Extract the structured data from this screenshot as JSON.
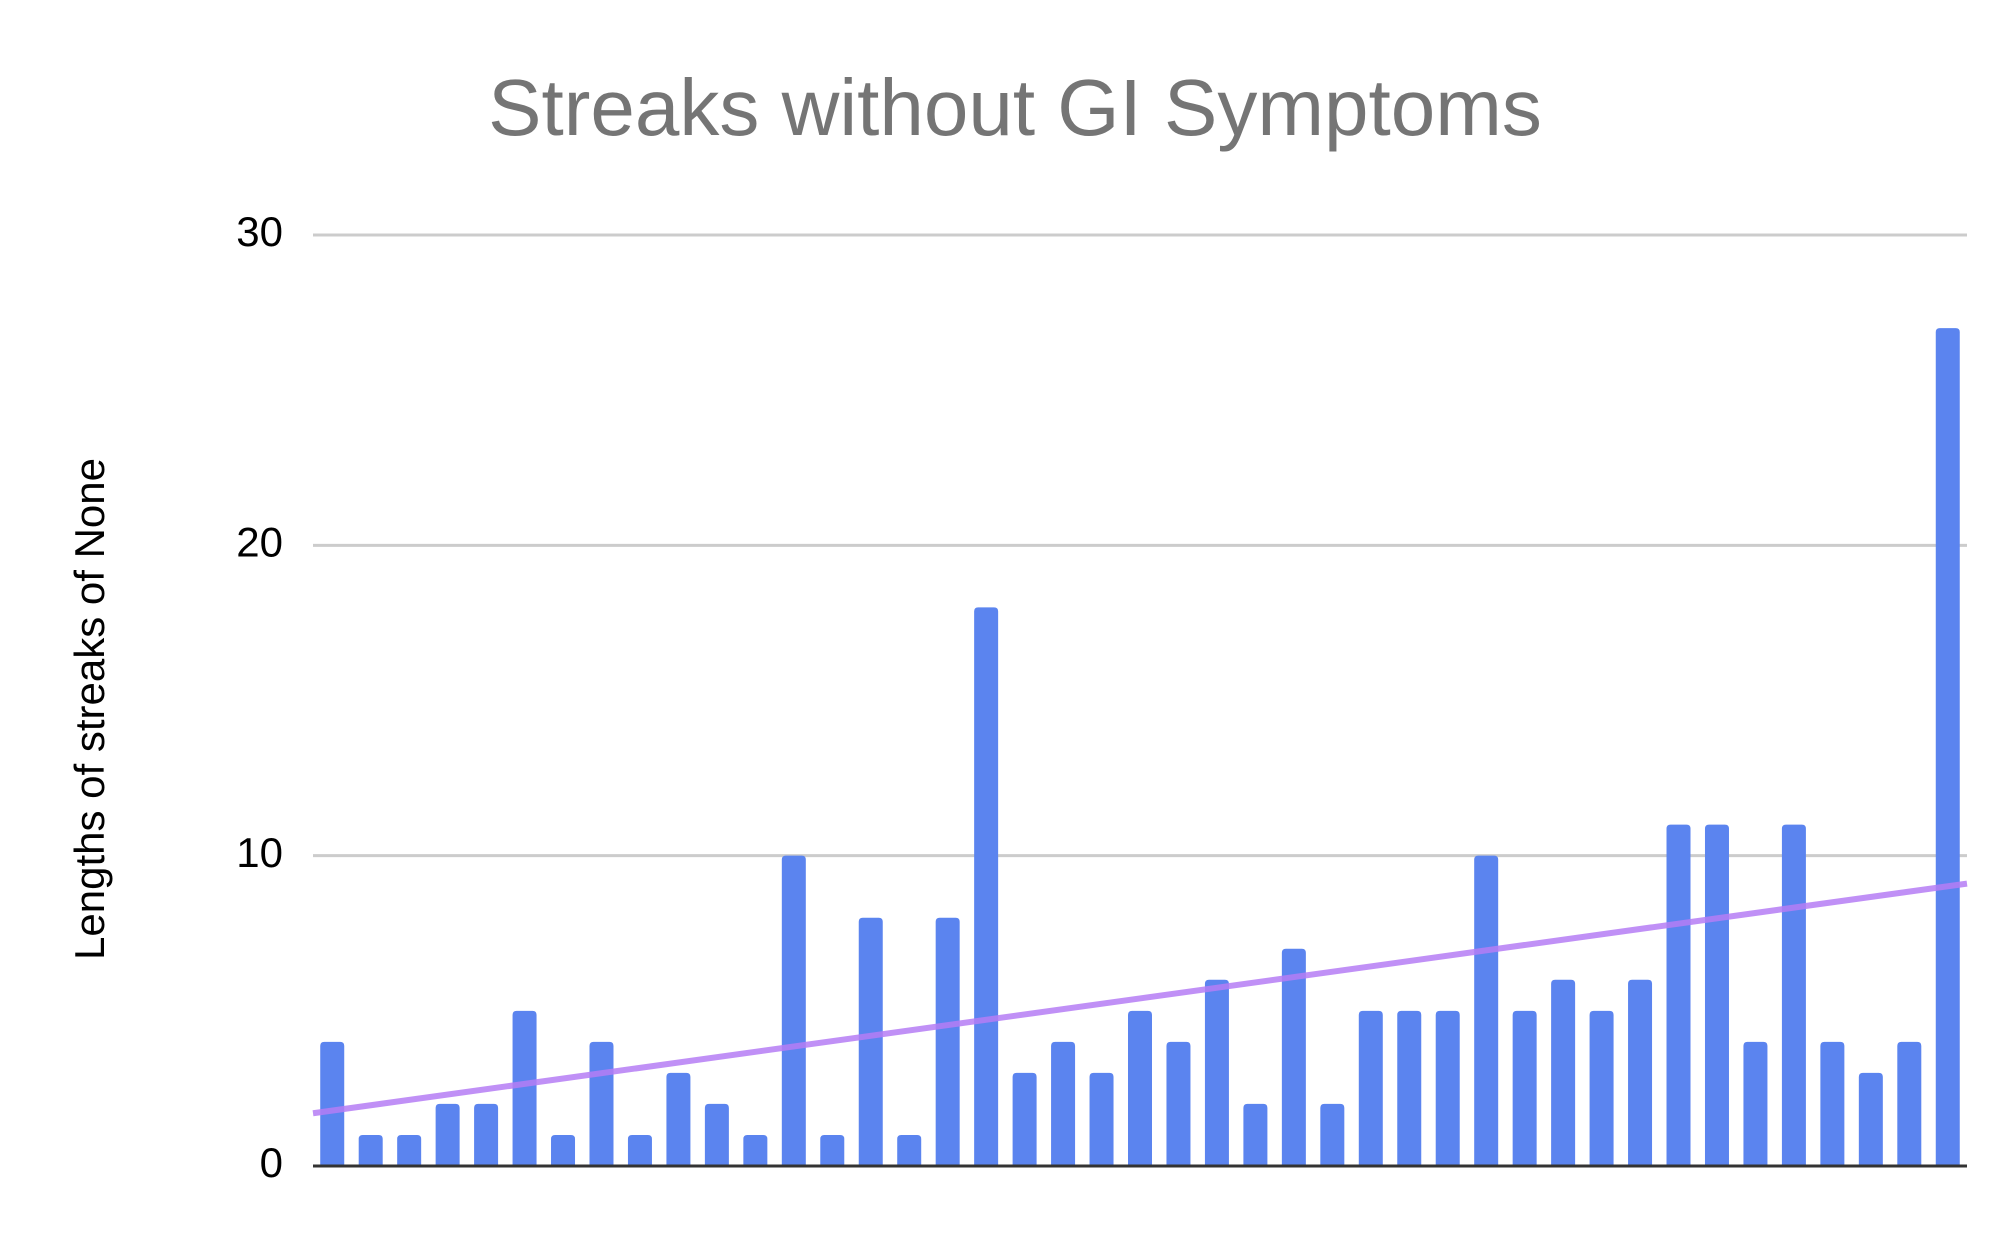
{
  "chart_data": {
    "type": "bar",
    "title": "Streaks without GI Symptoms",
    "y_label": "Lengths of streaks of None",
    "categories": [
      null,
      null,
      null,
      null,
      null,
      null,
      null,
      null,
      null,
      null,
      null,
      null,
      null,
      null,
      null,
      null,
      null,
      null,
      null,
      null,
      null,
      null,
      null,
      null,
      null,
      null,
      null,
      null,
      null,
      null,
      null,
      null,
      null,
      null,
      null,
      null,
      null,
      null,
      null,
      null,
      null,
      null,
      null
    ],
    "values": [
      4,
      1,
      1,
      2,
      2,
      5,
      1,
      4,
      1,
      3,
      2,
      1,
      10,
      1,
      8,
      1,
      8,
      18,
      3,
      4,
      3,
      5,
      4,
      6,
      2,
      7,
      2,
      5,
      5,
      5,
      10,
      5,
      6,
      5,
      6,
      11,
      11,
      4,
      11,
      4,
      3,
      4,
      27
    ],
    "color": "#5b84ef",
    "trendline": {
      "color": "#b57cf5",
      "start": 1.7,
      "end": 9.1
    },
    "ylim": [
      0,
      30
    ],
    "yticks": [
      0,
      10,
      20,
      30
    ],
    "grid": true
  }
}
